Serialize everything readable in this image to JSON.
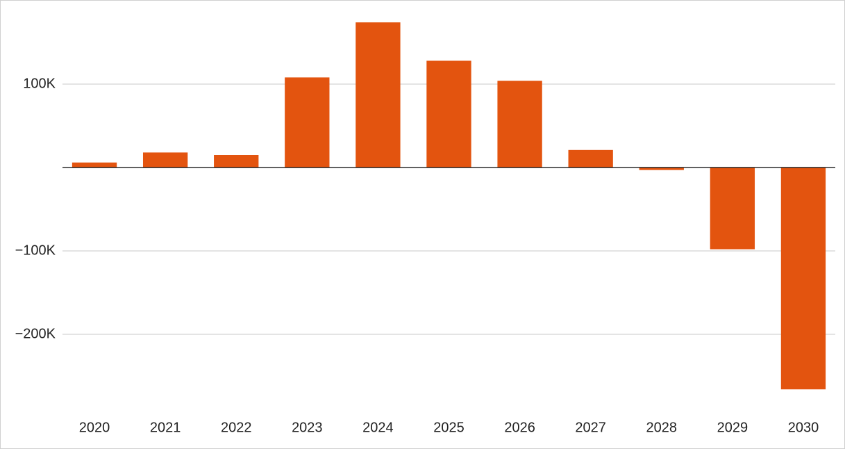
{
  "chart_data": {
    "type": "bar",
    "categories": [
      "2020",
      "2021",
      "2022",
      "2023",
      "2024",
      "2025",
      "2026",
      "2027",
      "2028",
      "2029",
      "2030"
    ],
    "values": [
      6000,
      18000,
      15000,
      108000,
      174000,
      128000,
      104000,
      21000,
      -3000,
      -98000,
      -266000
    ],
    "color": "#e3540f",
    "ylim": [
      -295000,
      192500
    ],
    "yticks": [
      {
        "value": -200000,
        "label": "−200K"
      },
      {
        "value": -100000,
        "label": "−100K"
      },
      {
        "value": 100000,
        "label": "100K"
      }
    ],
    "grid": true
  }
}
